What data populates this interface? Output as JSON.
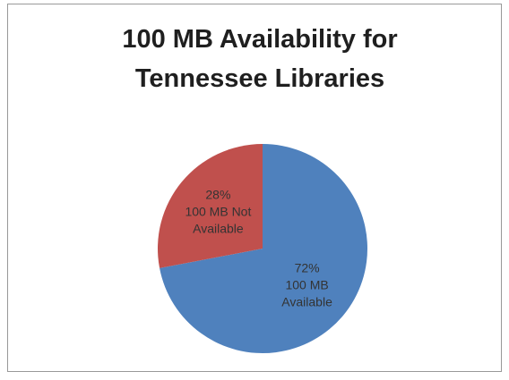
{
  "chart_data": {
    "type": "pie",
    "title": "100 MB Availability for Tennessee Libraries",
    "categories": [
      "100 MB Available",
      "100 MB Not Available"
    ],
    "values": [
      72,
      28
    ],
    "value_labels": [
      "72%",
      "28%"
    ],
    "colors": [
      "#4f81bd",
      "#c0504d"
    ]
  }
}
